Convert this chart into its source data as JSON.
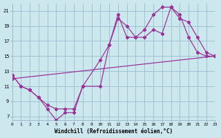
{
  "background_color": "#cce8ee",
  "grid_color": "#99bbcc",
  "line_color": "#993399",
  "xlim": [
    0,
    23
  ],
  "ylim": [
    6.5,
    22
  ],
  "xticks": [
    0,
    1,
    2,
    3,
    4,
    5,
    6,
    7,
    8,
    9,
    10,
    11,
    12,
    13,
    14,
    15,
    16,
    17,
    18,
    19,
    20,
    21,
    22,
    23
  ],
  "yticks": [
    7,
    9,
    11,
    13,
    15,
    17,
    19,
    21
  ],
  "xlabel": "Windchill (Refroidissement éolien,°C)",
  "series1_x": [
    0,
    1,
    2,
    3,
    4,
    5,
    6,
    7,
    8,
    10,
    11,
    12,
    13,
    14,
    15,
    16,
    17,
    18,
    19,
    20,
    21,
    22,
    23
  ],
  "series1_y": [
    12.5,
    11,
    10.5,
    9.5,
    8.0,
    6.5,
    7.5,
    7.5,
    11,
    14.5,
    16.5,
    20.0,
    19.0,
    17.5,
    17.5,
    18.5,
    18.0,
    21.5,
    20.5,
    17.5,
    15.5,
    15.0,
    15.0
  ],
  "series2_x": [
    0,
    1,
    2,
    3,
    4,
    5,
    6,
    7,
    8,
    10,
    11,
    12,
    13,
    14,
    15,
    16,
    17,
    18,
    19,
    20,
    21,
    22,
    23
  ],
  "series2_y": [
    12.5,
    11,
    10.5,
    9.5,
    8.5,
    8.0,
    8.0,
    8.0,
    11,
    11.0,
    16.5,
    20.5,
    17.5,
    17.5,
    18.5,
    20.5,
    21.5,
    21.5,
    20.0,
    19.5,
    17.5,
    15.5,
    15.0
  ],
  "series3_x": [
    0,
    23
  ],
  "series3_y": [
    12.0,
    15.0
  ],
  "figsize": [
    3.2,
    2.0
  ],
  "dpi": 100
}
